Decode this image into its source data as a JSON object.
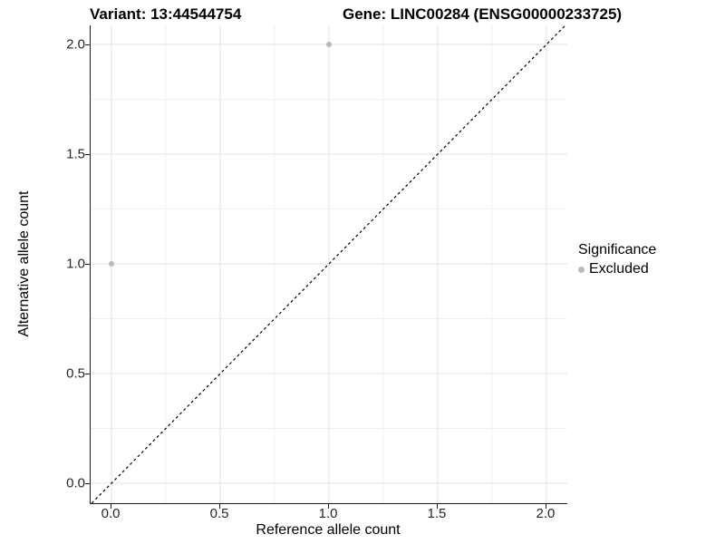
{
  "titles": {
    "variant": "Variant: 13:44544754",
    "gene": "Gene: LINC00284 (ENSG00000233725)"
  },
  "chart_data": {
    "type": "scatter",
    "title_left": "Variant: 13:44544754",
    "title_right": "Gene: LINC00284 (ENSG00000233725)",
    "xlabel": "Reference allele count",
    "ylabel": "Alternative allele count",
    "xlim": [
      -0.096,
      2.096
    ],
    "ylim": [
      -0.091,
      2.087
    ],
    "x_major_ticks": [
      0.0,
      0.5,
      1.0,
      1.5,
      2.0
    ],
    "x_tick_labels": [
      "0.0",
      "0.5",
      "1.0",
      "1.5",
      "2.0"
    ],
    "y_major_ticks": [
      0.0,
      0.5,
      1.0,
      1.5,
      2.0
    ],
    "y_tick_labels": [
      "0.0",
      "0.5",
      "1.0",
      "1.5",
      "2.0"
    ],
    "x_minor_ticks": [
      0.25,
      0.75,
      1.25,
      1.75
    ],
    "y_minor_ticks": [
      0.25,
      0.75,
      1.25,
      1.75
    ],
    "grid": true,
    "grid_major_color": "#e3e3e3",
    "grid_minor_color": "#f0f0f0",
    "identity_line": {
      "style": "dashed",
      "color": "#000000"
    },
    "series": [
      {
        "name": "Excluded",
        "color": "#b9b9b9",
        "points": [
          {
            "x": 0,
            "y": 1
          },
          {
            "x": 1,
            "y": 2
          }
        ]
      }
    ],
    "legend": {
      "title": "Significance",
      "position": "right",
      "items": [
        {
          "label": "Excluded",
          "color": "#b9b9b9"
        }
      ]
    }
  }
}
